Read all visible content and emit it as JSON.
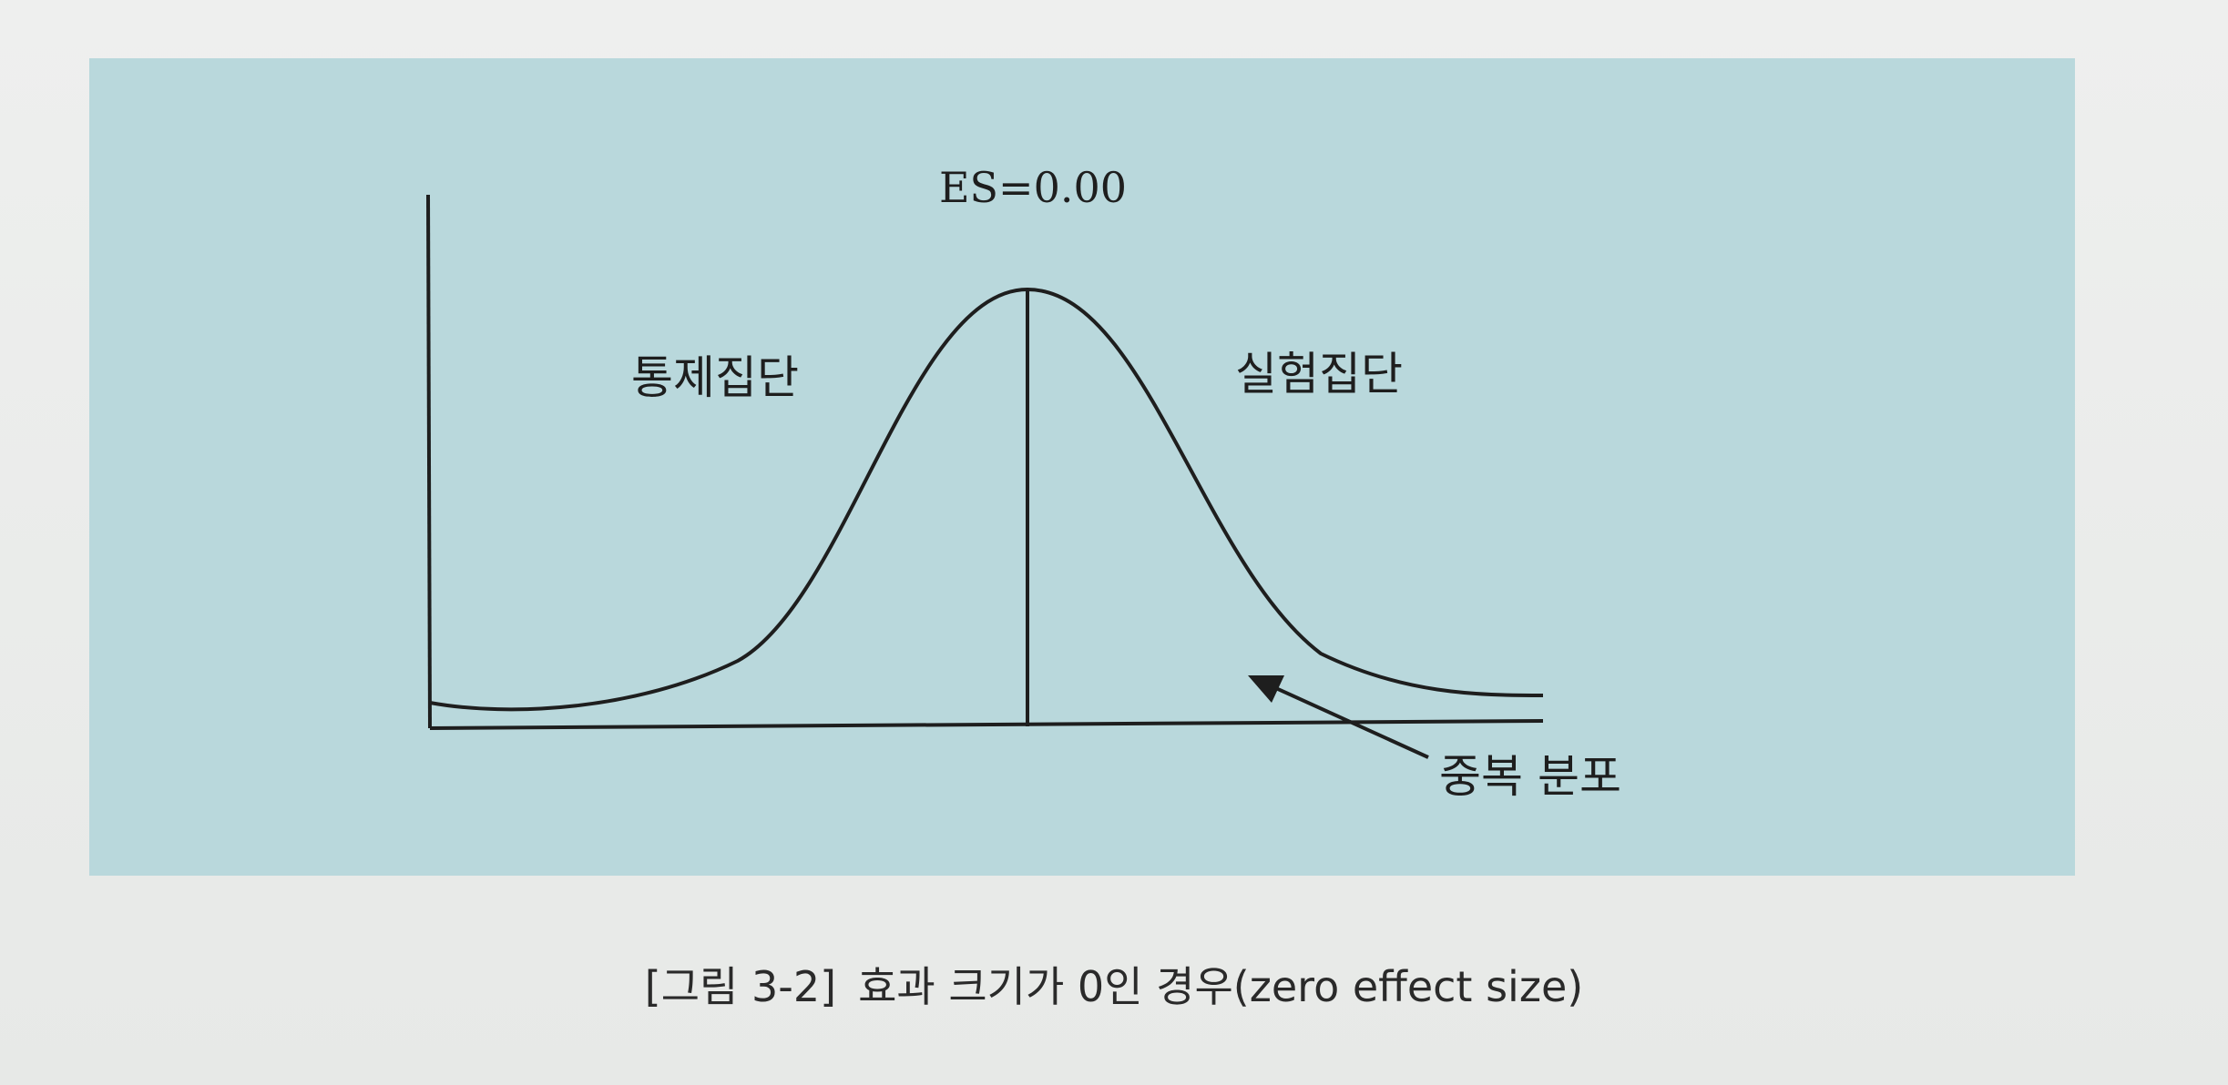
{
  "figure": {
    "es_label": "ES=0.00",
    "control_label": "통제집단",
    "experimental_label": "실험집단",
    "overlap_label": "중복 분포",
    "caption_number": "[그림 3-2]",
    "caption_text": "효과 크기가 0인 경우(zero effect size)"
  },
  "colors": {
    "panel": "#b9d8dc",
    "ink": "#1e1e1e"
  }
}
